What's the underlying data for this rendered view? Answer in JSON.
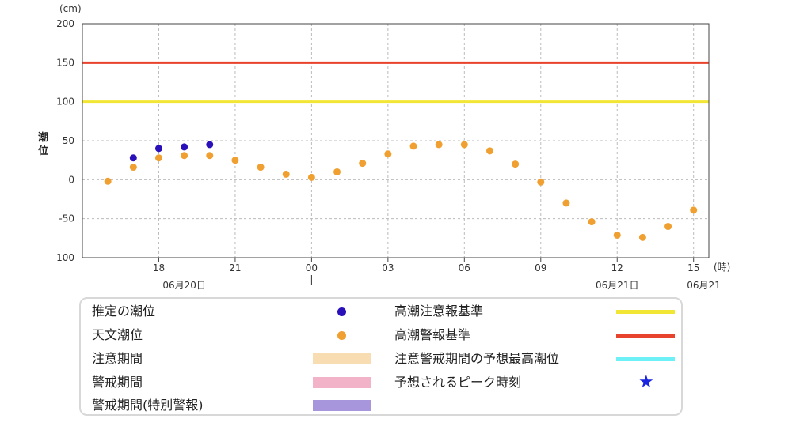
{
  "chart_data": {
    "type": "scatter",
    "unit_label": "(cm)",
    "ylabel": "潮位",
    "x_unit_label": "(時)",
    "ylim": [
      -100,
      200
    ],
    "y_ticks": [
      200,
      150,
      100,
      50,
      0,
      -50,
      -100
    ],
    "x_ticks": [
      {
        "hour": 3,
        "label": "18"
      },
      {
        "hour": 6,
        "label": "21"
      },
      {
        "hour": 9,
        "label": "00"
      },
      {
        "hour": 12,
        "label": "03"
      },
      {
        "hour": 15,
        "label": "06"
      },
      {
        "hour": 18,
        "label": "09"
      },
      {
        "hour": 21,
        "label": "12"
      },
      {
        "hour": 24,
        "label": "15"
      }
    ],
    "date_labels": [
      {
        "hour": 4,
        "label": "06月20日"
      },
      {
        "hour": 21,
        "label": "06月21日"
      },
      {
        "hour": 24.4,
        "label": "06月21"
      }
    ],
    "xlim": [
      0,
      24.6
    ],
    "day_divider_hour": 9,
    "reference_lines": [
      {
        "name": "高潮警報基準",
        "value": 150,
        "color": "#e8432d"
      },
      {
        "name": "高潮注意報基準",
        "value": 100,
        "color": "#f2e635"
      }
    ],
    "series": [
      {
        "name": "天文潮位",
        "color": "#f0a030",
        "x": [
          1,
          2,
          3,
          4,
          5,
          6,
          7,
          8,
          9,
          10,
          11,
          12,
          13,
          14,
          15,
          16,
          17,
          18,
          19,
          20,
          21,
          22,
          23,
          24
        ],
        "y": [
          -2,
          16,
          28,
          31,
          31,
          25,
          16,
          7,
          3,
          10,
          21,
          33,
          43,
          45,
          45,
          37,
          20,
          -3,
          -30,
          -54,
          -71,
          -74,
          -60,
          -39
        ]
      },
      {
        "name": "推定の潮位",
        "color": "#2a10b8",
        "x": [
          2,
          3,
          4,
          5
        ],
        "y": [
          28,
          40,
          42,
          45
        ]
      }
    ]
  },
  "legend": {
    "estimated_tide": "推定の潮位",
    "astronomical_tide": "天文潮位",
    "caution_period": "注意期間",
    "warning_period": "警戒期間",
    "special_warning_period": "警戒期間(特別警報)",
    "storm_surge_advisory": "高潮注意報基準",
    "storm_surge_warning": "高潮警報基準",
    "caution_peak": "注意警戒期間の予想最高潮位",
    "peak_time": "予想されるピーク時刻",
    "colors": {
      "estimated_tide": "#2a10b8",
      "astronomical_tide": "#f0a030",
      "caution_period": "#f8dcb2",
      "warning_period": "#f2b2c8",
      "special_warning_period": "#a796dc",
      "storm_surge_advisory": "#f2e635",
      "storm_surge_warning": "#e8432d",
      "caution_peak": "#6df0f6",
      "peak_time": "#1a25e0"
    },
    "peak_time_icon": "star-icon"
  }
}
